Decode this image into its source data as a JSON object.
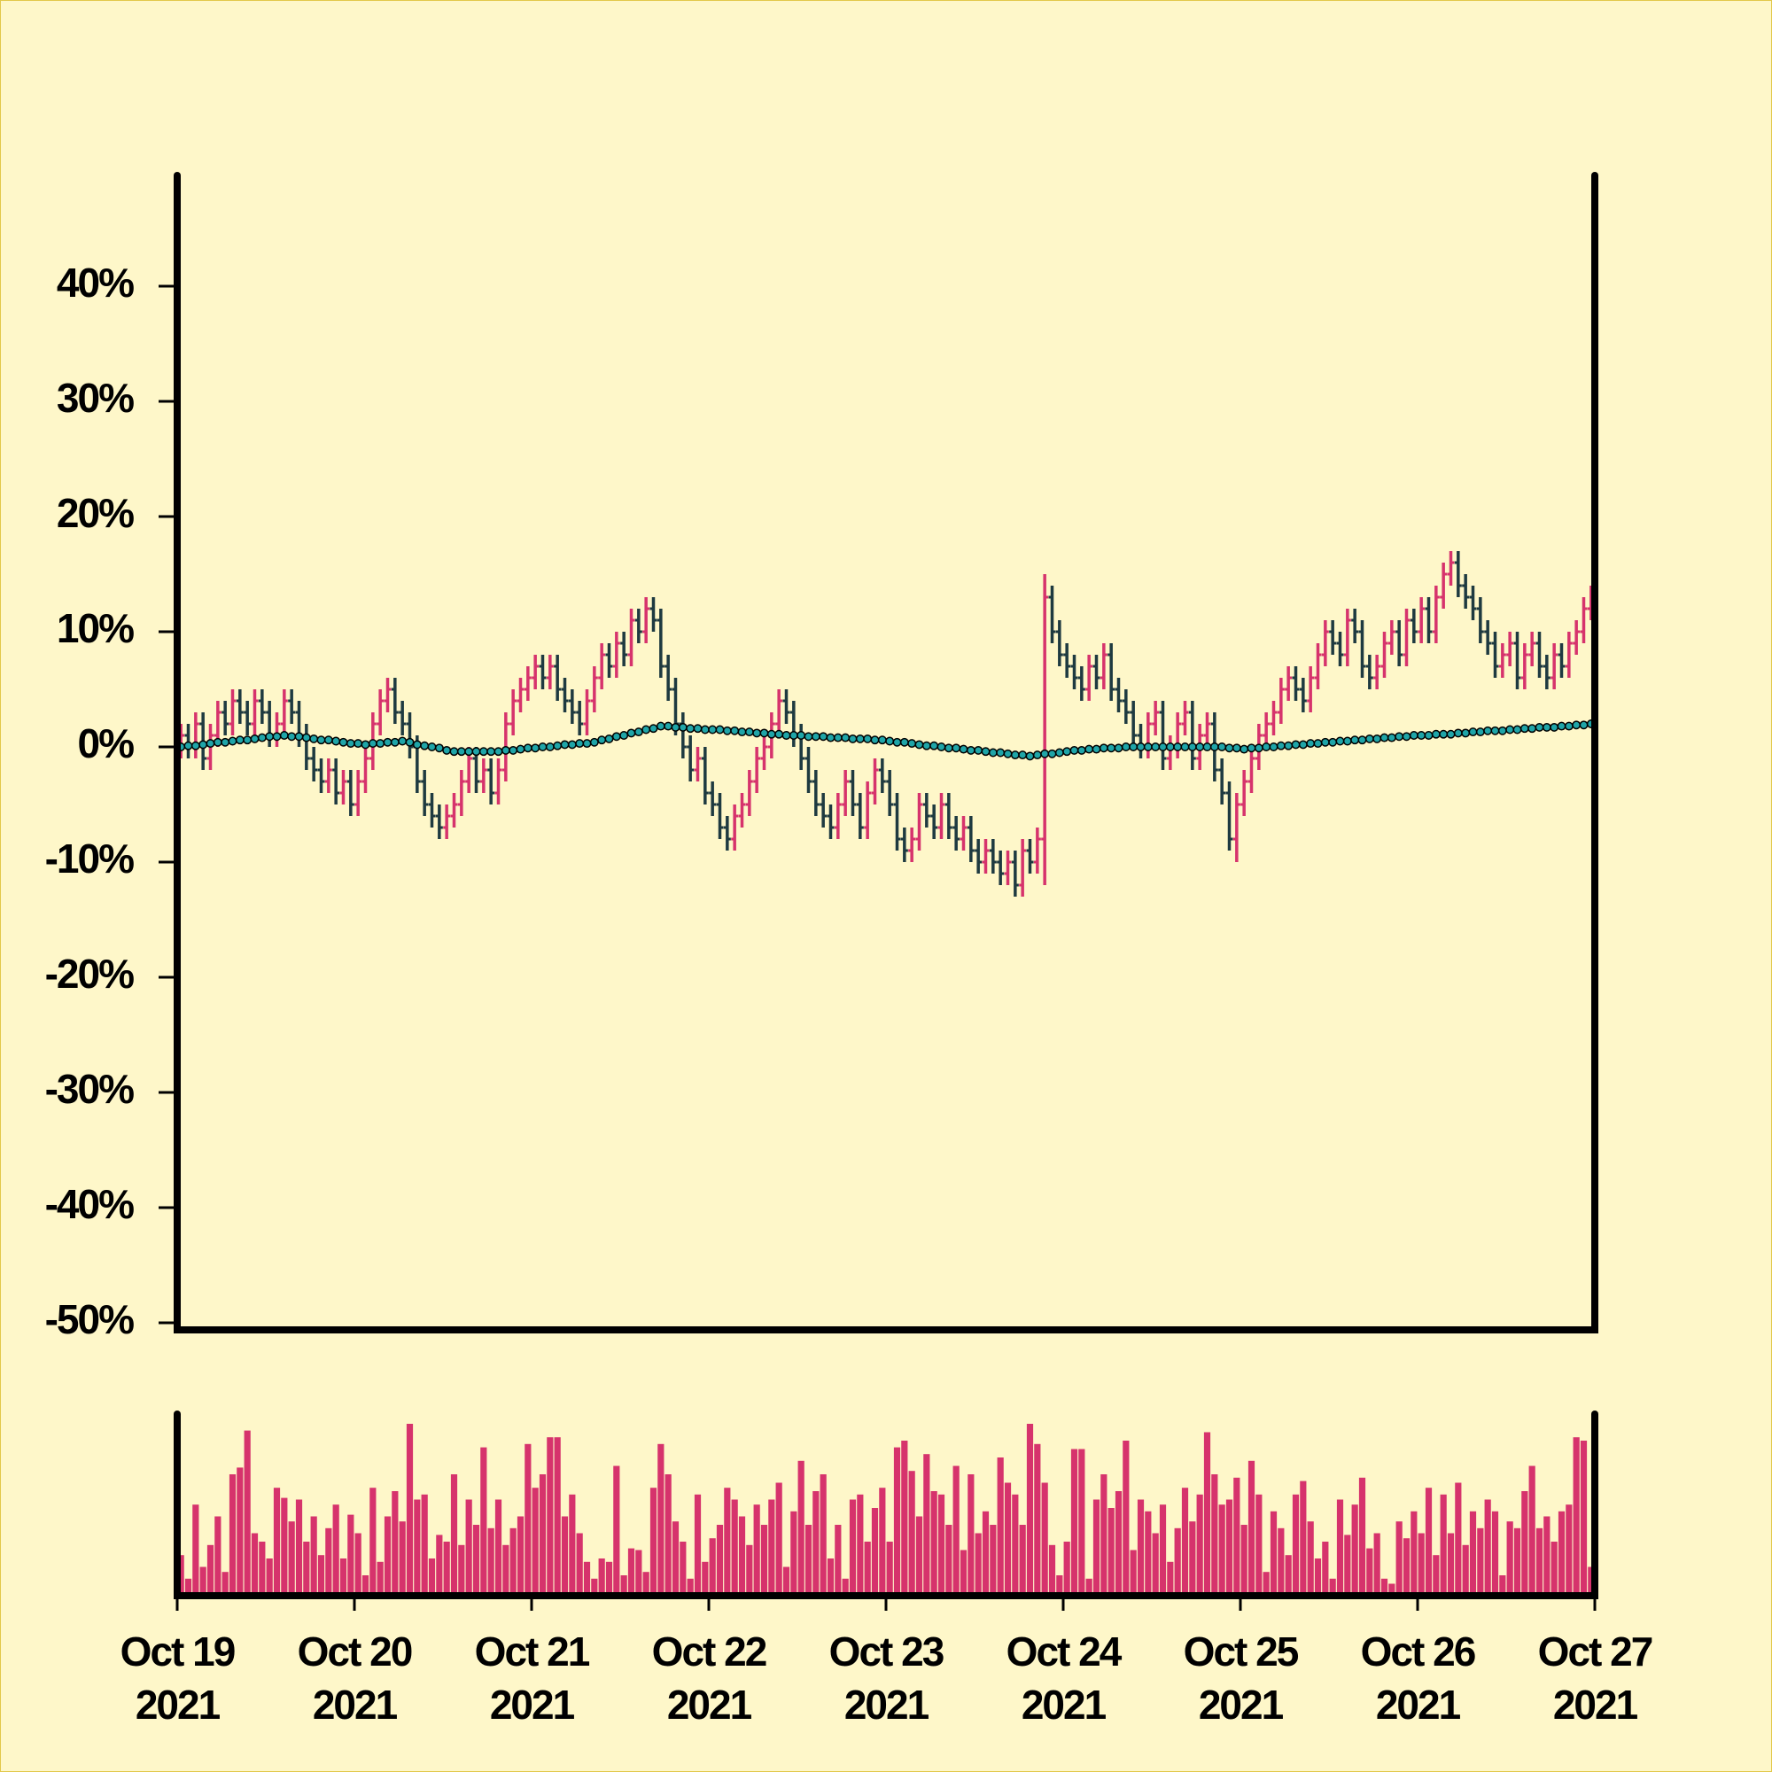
{
  "chart_data": {
    "type": "ohlc",
    "up_color": "#d6336c",
    "down_color": "#1e3a40",
    "ma_color": "#1fa5a8",
    "volume_color": "#d6336c",
    "ylim": [
      -50,
      50
    ],
    "yticks": [
      {
        "value": -50,
        "label": "-50%"
      },
      {
        "value": -40,
        "label": "-40%"
      },
      {
        "value": -30,
        "label": "-30%"
      },
      {
        "value": -20,
        "label": "-20%"
      },
      {
        "value": -10,
        "label": "-10%"
      },
      {
        "value": 0,
        "label": "0%"
      },
      {
        "value": 10,
        "label": "10%"
      },
      {
        "value": 20,
        "label": "20%"
      },
      {
        "value": 30,
        "label": "30%"
      },
      {
        "value": 40,
        "label": "40%"
      }
    ],
    "xlim": [
      0,
      192
    ],
    "xticks": [
      {
        "value": 0,
        "label": [
          "Oct 19",
          "2021"
        ]
      },
      {
        "value": 24,
        "label": [
          "Oct 20",
          "2021"
        ]
      },
      {
        "value": 48,
        "label": [
          "Oct 21",
          "2021"
        ]
      },
      {
        "value": 72,
        "label": [
          "Oct 22",
          "2021"
        ]
      },
      {
        "value": 96,
        "label": [
          "Oct 23",
          "2021"
        ]
      },
      {
        "value": 120,
        "label": [
          "Oct 24",
          "2021"
        ]
      },
      {
        "value": 144,
        "label": [
          "Oct 25",
          "2021"
        ]
      },
      {
        "value": 168,
        "label": [
          "Oct 26",
          "2021"
        ]
      },
      {
        "value": 192,
        "label": [
          "Oct 27",
          "2021"
        ]
      }
    ],
    "open": [
      0,
      1,
      0,
      2,
      -1,
      1,
      3,
      2,
      4,
      3,
      2,
      4,
      3,
      1,
      2,
      4,
      3,
      1,
      -1,
      -2,
      -3,
      -2,
      -4,
      -3,
      -5,
      -3,
      -1,
      2,
      4,
      5,
      3,
      2,
      0,
      -3,
      -5,
      -6,
      -7,
      -6,
      -5,
      -3,
      -1,
      -3,
      -2,
      -4,
      -2,
      2,
      4,
      5,
      6,
      7,
      6,
      7,
      5,
      4,
      3,
      2,
      4,
      6,
      8,
      7,
      9,
      8,
      11,
      10,
      12,
      11,
      7,
      5,
      2,
      0,
      -2,
      -1,
      -4,
      -5,
      -7,
      -8,
      -6,
      -5,
      -3,
      -1,
      0,
      2,
      4,
      3,
      1,
      -1,
      -3,
      -5,
      -6,
      -7,
      -5,
      -3,
      -5,
      -7,
      -4,
      -2,
      -3,
      -5,
      -8,
      -9,
      -8,
      -5,
      -6,
      -7,
      -5,
      -7,
      -8,
      -7,
      -9,
      -10,
      -9,
      -10,
      -11,
      -10,
      -12,
      -9,
      -10,
      -8,
      13,
      10,
      8,
      7,
      6,
      5,
      7,
      6,
      8,
      5,
      4,
      3,
      1,
      0,
      2,
      3,
      -1,
      0,
      2,
      3,
      -1,
      1,
      2,
      -2,
      -4,
      -8,
      -5,
      -3,
      -1,
      1,
      2,
      3,
      5,
      6,
      5,
      4,
      6,
      8,
      10,
      9,
      8,
      11,
      10,
      7,
      6,
      7,
      9,
      10,
      8,
      11,
      10,
      12,
      10,
      13,
      15,
      16,
      14,
      13,
      12,
      10,
      9,
      7,
      8,
      9,
      6,
      8,
      9,
      7,
      6,
      8,
      7,
      9,
      10,
      12
    ],
    "high": [
      2,
      2,
      3,
      3,
      2,
      4,
      4,
      5,
      5,
      4,
      5,
      5,
      4,
      3,
      5,
      5,
      4,
      2,
      0,
      -1,
      -1,
      -1,
      -2,
      -2,
      -2,
      0,
      3,
      5,
      6,
      6,
      4,
      3,
      1,
      -2,
      -4,
      -5,
      -5,
      -4,
      -2,
      0,
      0,
      -1,
      -1,
      -1,
      3,
      5,
      6,
      7,
      8,
      8,
      8,
      8,
      6,
      5,
      4,
      5,
      7,
      9,
      9,
      10,
      10,
      12,
      12,
      13,
      13,
      12,
      8,
      6,
      3,
      1,
      0,
      0,
      -3,
      -4,
      -6,
      -5,
      -4,
      -2,
      0,
      1,
      3,
      5,
      5,
      4,
      2,
      0,
      -2,
      -4,
      -5,
      -4,
      -2,
      -2,
      -4,
      -3,
      -1,
      -1,
      -2,
      -4,
      -7,
      -7,
      -4,
      -4,
      -5,
      -4,
      -4,
      -6,
      -6,
      -6,
      -8,
      -8,
      -8,
      -9,
      -9,
      -9,
      -8,
      -8,
      -7,
      15,
      14,
      11,
      9,
      8,
      7,
      8,
      8,
      9,
      9,
      6,
      5,
      4,
      2,
      3,
      4,
      4,
      1,
      3,
      4,
      4,
      2,
      3,
      3,
      -1,
      -3,
      -4,
      -2,
      0,
      2,
      3,
      4,
      6,
      7,
      7,
      6,
      7,
      9,
      11,
      11,
      10,
      12,
      12,
      11,
      8,
      8,
      10,
      11,
      11,
      12,
      12,
      13,
      13,
      14,
      16,
      17,
      17,
      15,
      14,
      13,
      11,
      10,
      9,
      10,
      10,
      9,
      10,
      10,
      8,
      9,
      9,
      10,
      11,
      13,
      14
    ],
    "low": [
      -1,
      -1,
      -1,
      -2,
      -2,
      0,
      1,
      1,
      2,
      1,
      1,
      2,
      0,
      0,
      1,
      2,
      0,
      -2,
      -3,
      -4,
      -4,
      -5,
      -5,
      -6,
      -6,
      -4,
      -2,
      1,
      3,
      2,
      1,
      -1,
      -4,
      -6,
      -7,
      -8,
      -8,
      -7,
      -6,
      -4,
      -4,
      -4,
      -5,
      -5,
      -3,
      1,
      3,
      4,
      5,
      5,
      5,
      4,
      3,
      2,
      1,
      1,
      3,
      5,
      6,
      6,
      7,
      7,
      9,
      9,
      10,
      6,
      4,
      1,
      -1,
      -3,
      -3,
      -5,
      -6,
      -8,
      -9,
      -9,
      -7,
      -6,
      -4,
      -2,
      -1,
      1,
      2,
      0,
      -2,
      -4,
      -6,
      -7,
      -8,
      -8,
      -6,
      -6,
      -8,
      -8,
      -5,
      -4,
      -6,
      -9,
      -10,
      -10,
      -9,
      -7,
      -8,
      -8,
      -8,
      -9,
      -9,
      -10,
      -11,
      -11,
      -11,
      -12,
      -12,
      -13,
      -13,
      -11,
      -11,
      -12,
      9,
      7,
      6,
      5,
      4,
      4,
      5,
      5,
      4,
      3,
      2,
      0,
      -1,
      -1,
      1,
      -2,
      -2,
      -1,
      1,
      -2,
      -2,
      0,
      -3,
      -5,
      -9,
      -10,
      -6,
      -4,
      -2,
      0,
      1,
      2,
      4,
      4,
      3,
      3,
      5,
      7,
      8,
      7,
      7,
      9,
      6,
      5,
      5,
      6,
      8,
      7,
      7,
      9,
      9,
      9,
      9,
      12,
      14,
      13,
      12,
      11,
      9,
      8,
      6,
      6,
      7,
      5,
      5,
      7,
      6,
      5,
      5,
      6,
      6,
      8,
      9,
      11
    ],
    "close": [
      1,
      0,
      2,
      -1,
      1,
      3,
      2,
      4,
      3,
      2,
      4,
      3,
      1,
      2,
      4,
      3,
      1,
      -1,
      -2,
      -3,
      -2,
      -4,
      -3,
      -5,
      -3,
      -1,
      2,
      4,
      5,
      3,
      2,
      0,
      -3,
      -5,
      -6,
      -7,
      -6,
      -5,
      -3,
      -1,
      -3,
      -2,
      -4,
      -2,
      2,
      4,
      5,
      6,
      7,
      6,
      7,
      5,
      4,
      3,
      2,
      4,
      6,
      8,
      7,
      9,
      8,
      11,
      10,
      12,
      11,
      7,
      5,
      2,
      0,
      -2,
      -1,
      -4,
      -5,
      -7,
      -8,
      -6,
      -5,
      -3,
      -1,
      0,
      2,
      4,
      3,
      1,
      -1,
      -3,
      -5,
      -6,
      -7,
      -5,
      -3,
      -5,
      -7,
      -4,
      -2,
      -3,
      -5,
      -8,
      -9,
      -8,
      -5,
      -6,
      -7,
      -5,
      -7,
      -8,
      -7,
      -9,
      -10,
      -9,
      -10,
      -11,
      -10,
      -12,
      -9,
      -10,
      -8,
      13,
      10,
      8,
      7,
      6,
      5,
      7,
      6,
      8,
      5,
      4,
      3,
      1,
      0,
      2,
      3,
      -1,
      0,
      2,
      3,
      -1,
      1,
      2,
      -2,
      -4,
      -8,
      -5,
      -3,
      -1,
      1,
      2,
      3,
      5,
      6,
      5,
      4,
      6,
      8,
      10,
      9,
      8,
      11,
      10,
      7,
      6,
      7,
      9,
      10,
      8,
      11,
      10,
      12,
      10,
      13,
      15,
      16,
      14,
      13,
      12,
      10,
      9,
      7,
      8,
      9,
      6,
      8,
      9,
      7,
      6,
      8,
      7,
      9,
      10,
      12,
      13
    ],
    "moving_average": [
      0,
      0.1,
      0.1,
      0.2,
      0.3,
      0.4,
      0.4,
      0.5,
      0.6,
      0.6,
      0.7,
      0.8,
      0.9,
      0.9,
      1.0,
      0.9,
      0.9,
      0.8,
      0.7,
      0.6,
      0.6,
      0.5,
      0.4,
      0.3,
      0.3,
      0.2,
      0.3,
      0.3,
      0.4,
      0.4,
      0.5,
      0.4,
      0.2,
      0.1,
      0,
      -0.1,
      -0.3,
      -0.4,
      -0.4,
      -0.4,
      -0.4,
      -0.4,
      -0.4,
      -0.4,
      -0.3,
      -0.3,
      -0.2,
      -0.1,
      -0.1,
      0,
      0,
      0.1,
      0.2,
      0.2,
      0.3,
      0.3,
      0.4,
      0.6,
      0.7,
      0.9,
      1.0,
      1.2,
      1.3,
      1.5,
      1.6,
      1.8,
      1.8,
      1.7,
      1.7,
      1.6,
      1.6,
      1.5,
      1.5,
      1.5,
      1.4,
      1.4,
      1.3,
      1.3,
      1.2,
      1.2,
      1.1,
      1.1,
      1.0,
      1.0,
      1.0,
      0.9,
      0.9,
      0.9,
      0.8,
      0.8,
      0.8,
      0.7,
      0.7,
      0.7,
      0.6,
      0.6,
      0.5,
      0.4,
      0.4,
      0.3,
      0.2,
      0.1,
      0.1,
      0,
      -0.1,
      -0.1,
      -0.2,
      -0.3,
      -0.3,
      -0.4,
      -0.5,
      -0.5,
      -0.6,
      -0.7,
      -0.7,
      -0.8,
      -0.7,
      -0.6,
      -0.6,
      -0.5,
      -0.4,
      -0.3,
      -0.3,
      -0.2,
      -0.2,
      -0.1,
      -0.1,
      -0.1,
      0,
      0,
      0,
      0,
      0,
      0,
      0,
      0,
      0,
      0,
      0,
      0,
      0,
      0,
      -0.1,
      -0.1,
      -0.2,
      -0.1,
      -0.1,
      0,
      0,
      0.1,
      0.1,
      0.2,
      0.2,
      0.3,
      0.3,
      0.4,
      0.4,
      0.5,
      0.5,
      0.6,
      0.6,
      0.7,
      0.7,
      0.8,
      0.8,
      0.9,
      0.9,
      1.0,
      1.0,
      1.0,
      1.1,
      1.1,
      1.1,
      1.2,
      1.2,
      1.3,
      1.3,
      1.4,
      1.4,
      1.4,
      1.5,
      1.5,
      1.6,
      1.6,
      1.7,
      1.7,
      1.7,
      1.8,
      1.8,
      1.9,
      1.9,
      2.0
    ],
    "volume": [
      22,
      8,
      52,
      15,
      28,
      45,
      12,
      70,
      74,
      96,
      35,
      30,
      20,
      62,
      56,
      42,
      55,
      30,
      45,
      22,
      38,
      52,
      20,
      46,
      35,
      10,
      62,
      18,
      45,
      60,
      42,
      100,
      55,
      58,
      20,
      34,
      30,
      70,
      28,
      55,
      40,
      86,
      38,
      55,
      28,
      38,
      45,
      88,
      62,
      70,
      92,
      92,
      45,
      58,
      35,
      18,
      8,
      20,
      18,
      75,
      10,
      26,
      25,
      12,
      62,
      88,
      70,
      42,
      30,
      8,
      58,
      18,
      32,
      40,
      62,
      55,
      45,
      28,
      52,
      40,
      55,
      65,
      15,
      48,
      78,
      40,
      60,
      70,
      20,
      40,
      8,
      55,
      58,
      30,
      50,
      62,
      30,
      86,
      90,
      72,
      45,
      82,
      60,
      58,
      40,
      75,
      25,
      70,
      35,
      48,
      40,
      80,
      65,
      58,
      40,
      100,
      88,
      65,
      28,
      10,
      30,
      85,
      85,
      8,
      55,
      70,
      50,
      60,
      90,
      25,
      55,
      48,
      35,
      52,
      18,
      38,
      62,
      42,
      58,
      95,
      70,
      52,
      55,
      68,
      40,
      78,
      58,
      12,
      48,
      38,
      22,
      58,
      66,
      42,
      20,
      30,
      8,
      55,
      34,
      52,
      68,
      26,
      35,
      8,
      5,
      42,
      32,
      48,
      35,
      62,
      22,
      58,
      35,
      65,
      28,
      48,
      38,
      55,
      48,
      10,
      42,
      38,
      60,
      75,
      38,
      45,
      30,
      48,
      52,
      92,
      90,
      15
    ]
  }
}
